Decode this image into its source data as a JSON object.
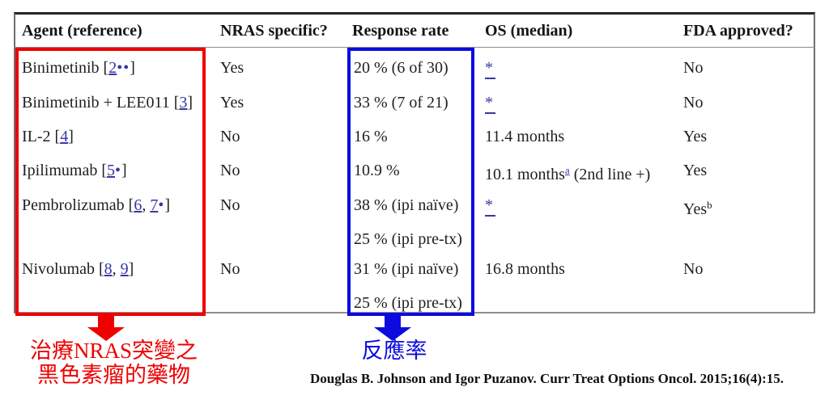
{
  "colors": {
    "highlight_red": "#ee0000",
    "highlight_blue": "#0b0be0",
    "link_blue": "#3636a8"
  },
  "table": {
    "headers": [
      "Agent (reference)",
      "NRAS specific?",
      "Response rate",
      "OS (median)",
      "FDA approved?"
    ],
    "rows": [
      {
        "agent": [
          {
            "t": "Binimetinib ["
          },
          {
            "t": "2",
            "s": "link"
          },
          {
            "t": "••",
            "s": "bullets"
          },
          {
            "t": "]"
          }
        ],
        "nras": "Yes",
        "response_lines": [
          "20 % (6 of 30)"
        ],
        "os": [
          {
            "t": "*",
            "s": "asterisk"
          }
        ],
        "fda": [
          {
            "t": "No"
          }
        ]
      },
      {
        "agent": [
          {
            "t": "Binimetinib + LEE011 ["
          },
          {
            "t": "3",
            "s": "link"
          },
          {
            "t": "]"
          }
        ],
        "nras": "Yes",
        "response_lines": [
          "33 % (7 of 21)"
        ],
        "os": [
          {
            "t": "*",
            "s": "asterisk"
          }
        ],
        "fda": [
          {
            "t": "No"
          }
        ]
      },
      {
        "agent": [
          {
            "t": "IL-2 ["
          },
          {
            "t": "4",
            "s": "link"
          },
          {
            "t": "]"
          }
        ],
        "nras": "No",
        "response_lines": [
          "16 %"
        ],
        "os": [
          {
            "t": "11.4 months"
          }
        ],
        "fda": [
          {
            "t": "Yes"
          }
        ]
      },
      {
        "agent": [
          {
            "t": "Ipilimumab ["
          },
          {
            "t": "5",
            "s": "link"
          },
          {
            "t": "•",
            "s": "bullets"
          },
          {
            "t": "]"
          }
        ],
        "nras": "No",
        "response_lines": [
          "10.9 %"
        ],
        "os": [
          {
            "t": "10.1 months"
          },
          {
            "t": "a",
            "s": "sup-link"
          },
          {
            "t": " (2nd line +)"
          }
        ],
        "fda": [
          {
            "t": "Yes"
          }
        ]
      },
      {
        "agent": [
          {
            "t": "Pembrolizumab ["
          },
          {
            "t": "6",
            "s": "link"
          },
          {
            "t": ", "
          },
          {
            "t": "7",
            "s": "link"
          },
          {
            "t": "•",
            "s": "bullets"
          },
          {
            "t": "]"
          }
        ],
        "nras": "No",
        "response_lines": [
          "38 % (ipi naïve)",
          "25 % (ipi pre-tx)"
        ],
        "os": [
          {
            "t": "*",
            "s": "asterisk"
          }
        ],
        "fda": [
          {
            "t": "Yes"
          },
          {
            "t": "b",
            "s": "sup"
          }
        ]
      },
      {
        "agent": [
          {
            "t": "Nivolumab ["
          },
          {
            "t": "8",
            "s": "link"
          },
          {
            "t": ", "
          },
          {
            "t": "9",
            "s": "link"
          },
          {
            "t": "]"
          }
        ],
        "nras": "No",
        "response_lines": [
          "31 % (ipi naïve)",
          "25 % (ipi pre-tx)"
        ],
        "os": [
          {
            "t": "16.8 months"
          }
        ],
        "fda": [
          {
            "t": "No"
          }
        ]
      }
    ]
  },
  "annotations": {
    "red_label_line1": "治療NRAS突變之",
    "red_label_line2": "黑色素瘤的藥物",
    "blue_label": "反應率",
    "citation": "Douglas B. Johnson and Igor Puzanov. Curr Treat Options Oncol. 2015;16(4):15."
  }
}
